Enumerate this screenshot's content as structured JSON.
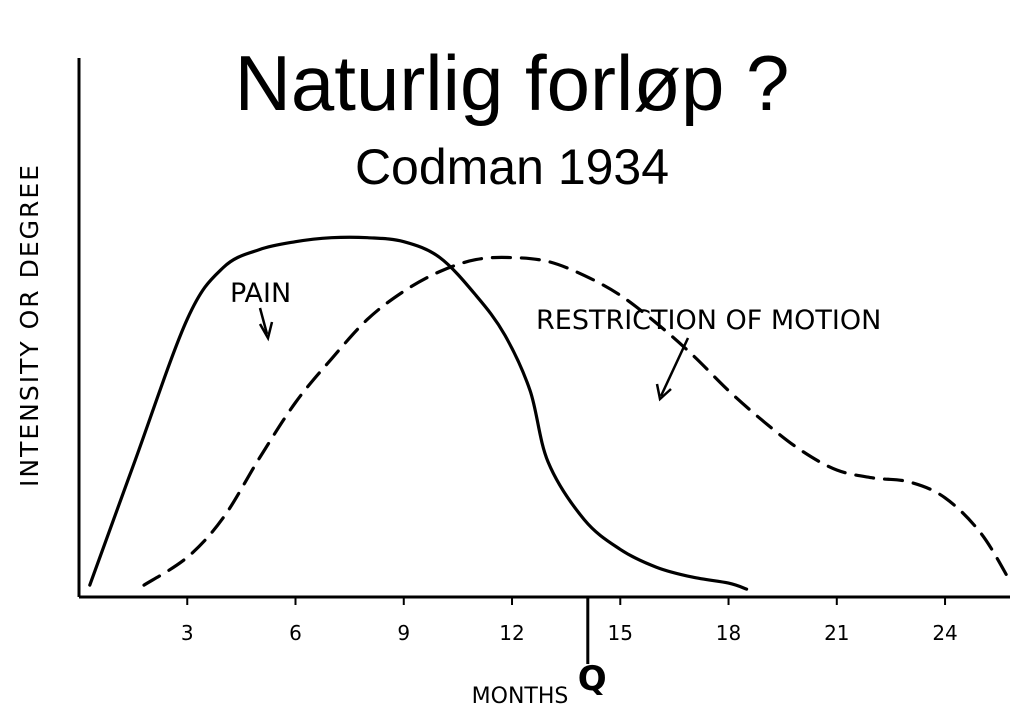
{
  "chart_data": {
    "type": "line",
    "title": "Naturlig forløp ?",
    "subtitle": "Codman 1934",
    "xlabel": "MONTHS",
    "ylabel": "INTENSITY OR DEGREE",
    "xlim": [
      0,
      25.8
    ],
    "ylim": [
      0,
      10
    ],
    "xticks": [
      3,
      6,
      9,
      12,
      15,
      18,
      21,
      24
    ],
    "xtick_labels": [
      "3",
      "6",
      "9",
      "12",
      "15",
      "18",
      "21",
      "24"
    ],
    "grid": false,
    "series": [
      {
        "name": "PAIN",
        "style": "solid",
        "color": "#000000",
        "x": [
          0.3,
          1.5,
          3.0,
          4.0,
          5.0,
          6.0,
          7.0,
          8.0,
          9.0,
          10.0,
          11.0,
          11.8,
          12.5,
          13.0,
          14.0,
          15.0,
          16.0,
          17.0,
          18.0,
          18.5
        ],
        "y": [
          0.3,
          3.3,
          7.0,
          8.3,
          8.75,
          8.95,
          9.05,
          9.05,
          8.95,
          8.55,
          7.6,
          6.6,
          5.2,
          3.4,
          1.95,
          1.2,
          0.75,
          0.5,
          0.35,
          0.2
        ]
      },
      {
        "name": "RESTRICTION OF MOTION",
        "style": "dashed",
        "color": "#000000",
        "x": [
          1.8,
          3.0,
          4.0,
          5.0,
          6.0,
          7.0,
          8.0,
          9.0,
          10.0,
          11.0,
          12.0,
          13.0,
          14.0,
          15.0,
          16.0,
          17.0,
          18.0,
          19.0,
          20.0,
          21.0,
          22.0,
          23.0,
          24.0,
          25.0,
          25.8
        ],
        "y": [
          0.3,
          1.0,
          2.0,
          3.5,
          4.9,
          6.0,
          7.0,
          7.7,
          8.2,
          8.5,
          8.55,
          8.45,
          8.1,
          7.6,
          6.9,
          6.1,
          5.2,
          4.4,
          3.7,
          3.2,
          3.0,
          2.9,
          2.5,
          1.6,
          0.4
        ]
      }
    ],
    "annotations": [
      {
        "text": "PAIN",
        "target_series": "PAIN"
      },
      {
        "text": "RESTRICTION OF MOTION",
        "target_series": "RESTRICTION OF MOTION"
      }
    ],
    "marker": {
      "text": "Q",
      "x": 14.1
    }
  }
}
